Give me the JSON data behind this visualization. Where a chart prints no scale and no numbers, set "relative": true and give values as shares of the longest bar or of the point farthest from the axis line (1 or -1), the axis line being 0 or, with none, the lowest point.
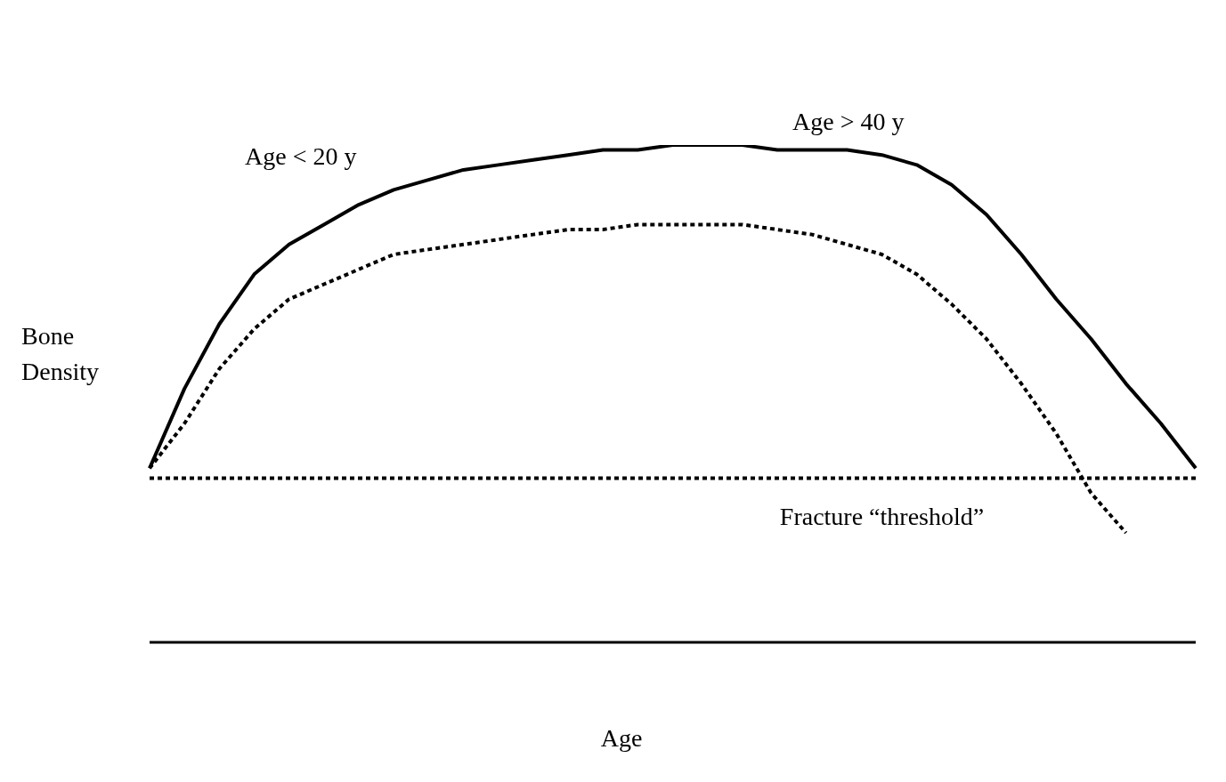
{
  "chart_data": {
    "type": "line",
    "relative": true,
    "xlabel": "Age",
    "ylabel": "Bone Density",
    "categories": [
      null,
      null,
      null,
      null,
      null,
      null,
      null,
      null,
      null,
      null,
      null,
      null,
      null,
      null,
      null,
      null,
      null,
      null,
      null,
      null,
      null,
      null,
      null,
      null,
      null,
      null,
      null,
      null,
      null,
      null,
      null
    ],
    "series": [
      {
        "color": "#000000",
        "line_style": "solid",
        "values": [
          0.35,
          0.51,
          0.64,
          0.74,
          0.8,
          0.84,
          0.88,
          0.91,
          0.93,
          0.95,
          0.96,
          0.97,
          0.98,
          0.99,
          0.99,
          1,
          1,
          1,
          0.99,
          0.99,
          0.99,
          0.98,
          0.96,
          0.92,
          0.86,
          0.78,
          0.69,
          0.61,
          0.52,
          0.44,
          0.35
        ]
      },
      {
        "color": "#000000",
        "line_style": "dotted",
        "values": [
          0.35,
          0.44,
          0.55,
          0.63,
          0.69,
          0.72,
          0.75,
          0.78,
          0.79,
          0.8,
          0.81,
          0.82,
          0.83,
          0.83,
          0.84,
          0.84,
          0.84,
          0.84,
          0.83,
          0.82,
          0.8,
          0.78,
          0.74,
          0.68,
          0.61,
          0.52,
          0.42,
          0.3,
          0.22,
          null,
          null
        ]
      }
    ],
    "ref_lines": [
      {
        "axis": "y",
        "value": 0.33,
        "label": "Fracture “threshold”",
        "line_style": "dotted",
        "color": "#000000"
      }
    ],
    "annotations": [
      "Age < 20 y",
      "Age > 40 y"
    ],
    "grid": false,
    "legend": false,
    "marker": "none"
  }
}
